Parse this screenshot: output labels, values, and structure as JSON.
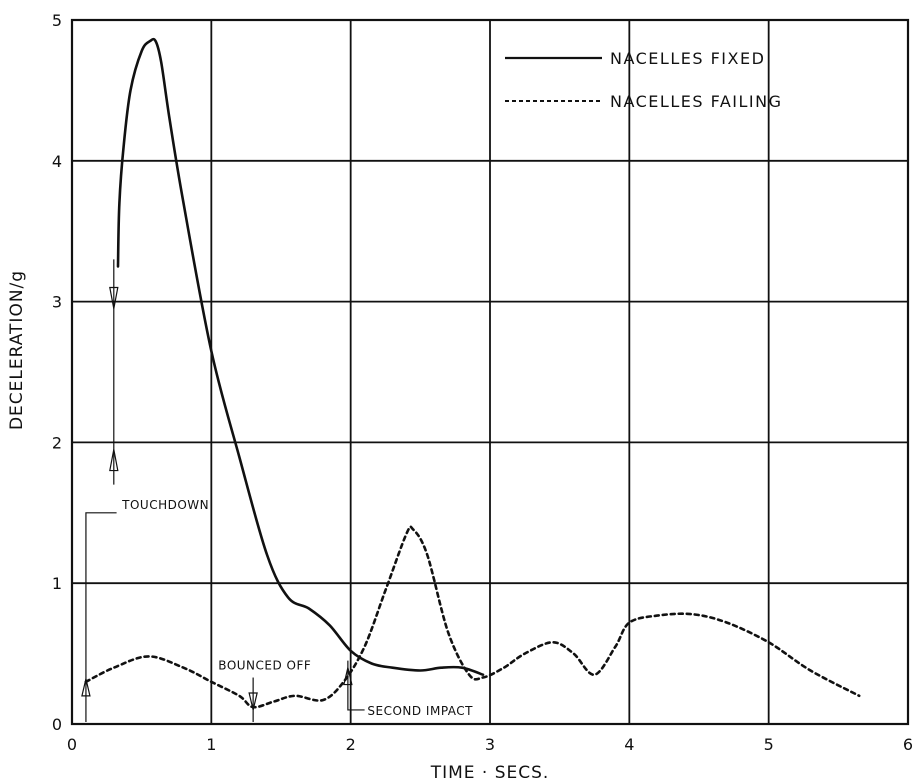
{
  "chart_data": {
    "type": "line",
    "xlabel": "TIME · SECS.",
    "ylabel": "DECELERATION/g",
    "xlim": [
      0,
      6
    ],
    "ylim": [
      0,
      5
    ],
    "x_ticks": [
      "0",
      "1",
      "2",
      "3",
      "4",
      "5",
      "6"
    ],
    "y_ticks": [
      "0",
      "1",
      "2",
      "3",
      "4",
      "5"
    ],
    "grid": true,
    "legend_position": "top-right",
    "series": [
      {
        "name": "NACELLES FIXED",
        "style": "solid",
        "color": "#111111",
        "x": [
          0.33,
          0.34,
          0.37,
          0.42,
          0.5,
          0.56,
          0.6,
          0.64,
          0.7,
          0.8,
          1.0,
          1.2,
          1.4,
          1.55,
          1.7,
          1.85,
          2.0,
          2.15,
          2.3,
          2.5,
          2.65,
          2.8,
          2.95
        ],
        "values": [
          3.25,
          3.7,
          4.1,
          4.5,
          4.78,
          4.85,
          4.85,
          4.7,
          4.3,
          3.7,
          2.65,
          1.9,
          1.2,
          0.9,
          0.82,
          0.7,
          0.52,
          0.43,
          0.4,
          0.38,
          0.4,
          0.4,
          0.35
        ]
      },
      {
        "name": "NACELLES FAILING",
        "style": "dashed",
        "color": "#111111",
        "x": [
          0.1,
          0.3,
          0.55,
          0.8,
          1.0,
          1.2,
          1.3,
          1.45,
          1.6,
          1.8,
          1.95,
          2.1,
          2.25,
          2.4,
          2.45,
          2.55,
          2.7,
          2.85,
          2.95,
          3.1,
          3.25,
          3.45,
          3.6,
          3.75,
          3.9,
          4.0,
          4.2,
          4.45,
          4.7,
          5.0,
          5.3,
          5.65
        ],
        "values": [
          0.3,
          0.4,
          0.48,
          0.4,
          0.3,
          0.2,
          0.12,
          0.16,
          0.2,
          0.17,
          0.3,
          0.55,
          0.95,
          1.35,
          1.38,
          1.2,
          0.65,
          0.35,
          0.33,
          0.4,
          0.5,
          0.58,
          0.5,
          0.35,
          0.55,
          0.72,
          0.77,
          0.78,
          0.72,
          0.58,
          0.38,
          0.2
        ]
      }
    ],
    "annotations": [
      {
        "text": "TOUCHDOWN",
        "x": 0.1
      },
      {
        "text": "BOUNCED OFF",
        "x": 1.3
      },
      {
        "text": "SECOND IMPACT",
        "x": 1.98
      }
    ]
  }
}
